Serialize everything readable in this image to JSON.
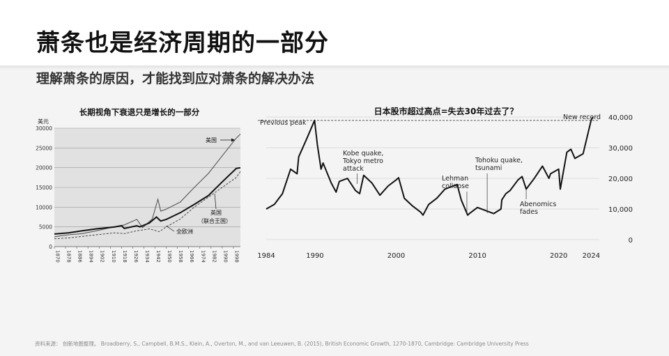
{
  "header": {
    "title": "萧条也是经济周期的一部分",
    "subtitle": "理解萧条的原因，才能找到应对萧条的解决办法"
  },
  "footer": {
    "source": "资料来源： 创新地图整理。 Broadberry, S., Campbell, B.M.S., Klein, A., Overton, M., and van Leeuwen, B. (2015), British Economic Growth, 1270-1870, Cambridge: Cambridge University Press"
  },
  "chart_data": [
    {
      "type": "line",
      "title": "长期视角下衰退只是增长的一部分",
      "ylabel": "美元",
      "ylim": [
        0,
        30000
      ],
      "xlim": [
        1870,
        2003
      ],
      "grid": "horizontal",
      "y_ticks": [
        0,
        5000,
        10000,
        15000,
        20000,
        25000,
        30000
      ],
      "x_ticks": [
        1870,
        1878,
        1886,
        1894,
        1902,
        1910,
        1918,
        1926,
        1934,
        1942,
        1950,
        1958,
        1966,
        1974,
        1982,
        1990,
        1998
      ],
      "series": [
        {
          "name": "美国",
          "style": "thin",
          "x": [
            1870,
            1880,
            1890,
            1900,
            1910,
            1914,
            1920,
            1929,
            1933,
            1940,
            1944,
            1946,
            1950,
            1960,
            1970,
            1980,
            1990,
            2000,
            2003
          ],
          "y": [
            2500,
            3000,
            3300,
            4000,
            4800,
            5000,
            5500,
            6900,
            4800,
            7000,
            12000,
            9000,
            9500,
            11300,
            15000,
            18500,
            23000,
            27500,
            28500
          ]
        },
        {
          "name": "英国（联合王国）",
          "style": "thick",
          "x": [
            1870,
            1880,
            1890,
            1900,
            1913,
            1918,
            1920,
            1929,
            1931,
            1938,
            1943,
            1946,
            1950,
            1960,
            1970,
            1980,
            1990,
            2000,
            2003
          ],
          "y": [
            3200,
            3500,
            4000,
            4500,
            5000,
            5300,
            4600,
            5300,
            5000,
            6000,
            7500,
            6500,
            6900,
            8600,
            10700,
            12900,
            16400,
            19800,
            20000
          ]
        },
        {
          "name": "全欧洲",
          "style": "dashed",
          "x": [
            1870,
            1880,
            1890,
            1900,
            1913,
            1920,
            1929,
            1938,
            1945,
            1950,
            1960,
            1970,
            1980,
            1990,
            2000,
            2003
          ],
          "y": [
            2000,
            2200,
            2600,
            3000,
            3500,
            3300,
            4000,
            4500,
            3800,
            5000,
            7000,
            10000,
            12500,
            15000,
            17500,
            19000
          ]
        }
      ],
      "annotations": [
        "美国",
        "英国",
        "（联合王国）",
        "全欧洲"
      ]
    },
    {
      "type": "line",
      "title": "日本股市超过高点=失去30年过去了？",
      "ylim": [
        0,
        40000
      ],
      "xlim": [
        1984,
        2025
      ],
      "y_ticks": [
        0,
        10000,
        20000,
        30000,
        40000
      ],
      "y_tick_labels": [
        "0",
        "10,000",
        "20,000",
        "30,000",
        "40,000"
      ],
      "x_ticks": [
        1984,
        1990,
        2000,
        2010,
        2020,
        2024
      ],
      "series": [
        {
          "x": [
            1984,
            1985,
            1986,
            1987,
            1987.8,
            1988,
            1989,
            1989.95,
            1990.3,
            1990.75,
            1991,
            1992,
            1992.6,
            1993,
            1994,
            1995,
            1995.5,
            1996,
            1997,
            1998,
            1999,
            2000,
            2000.3,
            2001,
            2002,
            2003,
            2003.3,
            2004,
            2005,
            2006,
            2007,
            2007.5,
            2008,
            2008.8,
            2009,
            2009.5,
            2010,
            2011,
            2012,
            2012.9,
            2013,
            2013.5,
            2014,
            2015,
            2015.5,
            2016,
            2017,
            2018,
            2018.8,
            2019,
            2020,
            2020.2,
            2021,
            2021.5,
            2022,
            2023,
            2023.5,
            2024,
            2024.2
          ],
          "y": [
            10000,
            11500,
            15000,
            23000,
            21500,
            27000,
            33000,
            38900,
            31000,
            23000,
            25000,
            18500,
            15500,
            19000,
            20000,
            16000,
            15000,
            21000,
            18500,
            14500,
            17500,
            19500,
            20200,
            13500,
            11000,
            9000,
            8000,
            11500,
            13500,
            16500,
            17500,
            18000,
            13000,
            8000,
            8500,
            9500,
            10500,
            9500,
            8500,
            10000,
            13000,
            15000,
            16000,
            19500,
            20600,
            16500,
            20000,
            24000,
            20000,
            21500,
            23000,
            16500,
            28500,
            29500,
            26500,
            28000,
            33500,
            39000,
            40000
          ]
        }
      ],
      "reference_line": {
        "label": "Previous peak",
        "y": 38900
      },
      "annotations": [
        {
          "text": "Previous peak"
        },
        {
          "text": "New record"
        },
        {
          "text": "Kobe quake,\nTokyo metro\nattack",
          "x": 1995.2
        },
        {
          "text": "Lehman\ncollapse",
          "x": 2008.7
        },
        {
          "text": "Tohoku quake,\ntsunami",
          "x": 2011.2
        },
        {
          "text": "Abenomics\nfades",
          "x": 2016
        }
      ]
    }
  ]
}
